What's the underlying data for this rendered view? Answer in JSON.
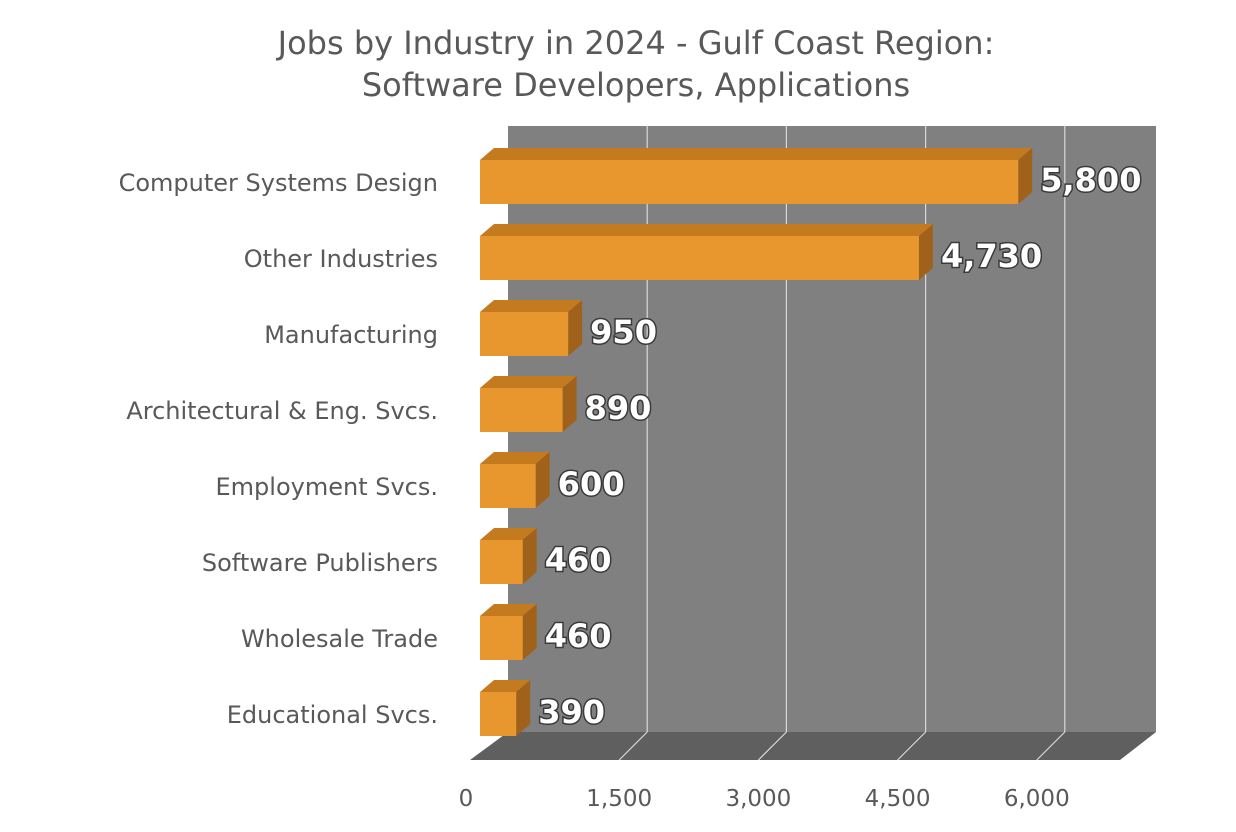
{
  "chart_data": {
    "type": "bar",
    "orientation": "horizontal",
    "style": "3d",
    "title_lines": [
      "Jobs by Industry in 2024 - Gulf Coast Region:",
      "Software Developers, Applications"
    ],
    "categories": [
      "Computer Systems Design",
      "Other Industries",
      "Manufacturing",
      "Architectural & Eng. Svcs.",
      "Employment Svcs.",
      "Software Publishers",
      "Wholesale Trade",
      "Educational Svcs."
    ],
    "values": [
      5800,
      4730,
      950,
      890,
      600,
      460,
      460,
      390
    ],
    "value_labels": [
      "5,800",
      "4,730",
      "950",
      "890",
      "600",
      "460",
      "460",
      "390"
    ],
    "x_ticks": [
      0,
      1500,
      3000,
      4500,
      6000
    ],
    "x_tick_labels": [
      "0",
      "1,500",
      "3,000",
      "4,500",
      "6,000"
    ],
    "xlim": [
      0,
      7000
    ],
    "grid": true,
    "legend": "none",
    "colors": {
      "bar_front": "#E8962E",
      "bar_top": "#C47A1E",
      "bar_side": "#A0621A",
      "back_wall": "#808080",
      "floor": "#5f5f5f",
      "gridline": "#d9d9d9",
      "text": "#595959"
    }
  }
}
